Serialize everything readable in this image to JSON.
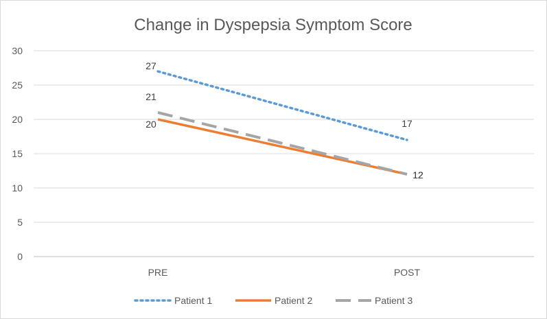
{
  "chart_data": {
    "type": "line",
    "title": "Change in Dyspepsia Symptom Score",
    "xlabel": "",
    "ylabel": "",
    "categories": [
      "PRE",
      "POST"
    ],
    "ylim": [
      0,
      30
    ],
    "yticks": [
      0,
      5,
      10,
      15,
      20,
      25,
      30
    ],
    "grid": true,
    "legend_position": "bottom",
    "series": [
      {
        "name": "Patient 1",
        "values": [
          27,
          17
        ],
        "color": "#5b9bd5",
        "style": "dotted"
      },
      {
        "name": "Patient 2",
        "values": [
          20,
          12
        ],
        "color": "#ed7d31",
        "style": "solid"
      },
      {
        "name": "Patient 3",
        "values": [
          21,
          12
        ],
        "color": "#a5a5a5",
        "style": "dashed"
      }
    ]
  }
}
